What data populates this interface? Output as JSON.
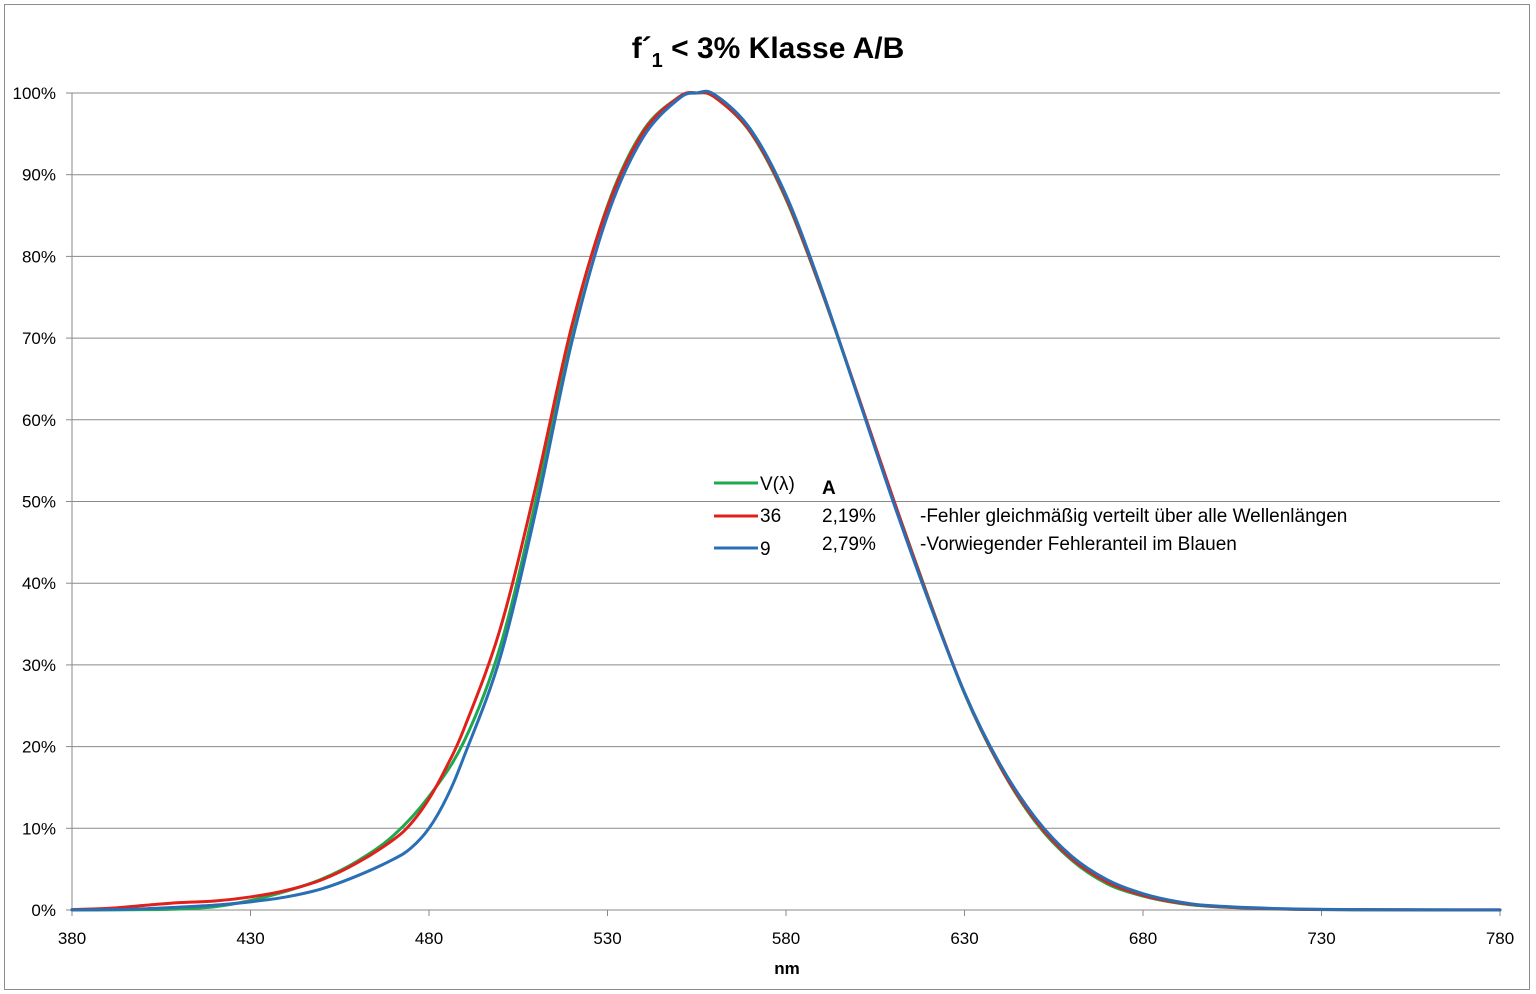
{
  "chart_data": {
    "type": "line",
    "title": "f´1 < 3% Klasse A/B",
    "title_parts": {
      "main": "f´",
      "subscript": "1",
      "rest": " < 3% Klasse A/B"
    },
    "xlabel": "nm",
    "ylabel": "",
    "xlim": [
      380,
      780
    ],
    "ylim": [
      0,
      100
    ],
    "x_ticks": [
      380,
      430,
      480,
      530,
      580,
      630,
      680,
      730,
      780
    ],
    "y_ticks": [
      "0%",
      "10%",
      "20%",
      "30%",
      "40%",
      "50%",
      "60%",
      "70%",
      "80%",
      "90%",
      "100%"
    ],
    "grid": true,
    "legend": {
      "placement": "center",
      "column_header": "A",
      "entries": [
        {
          "label": "V(λ)",
          "value": "",
          "note": ""
        },
        {
          "label": "36",
          "value": "2,19%",
          "note": "-Fehler gleichmäßig verteilt über alle  Wellenlängen"
        },
        {
          "label": "9",
          "value": "2,79%",
          "note": "-Vorwiegender Fehleranteil im Blauen"
        }
      ]
    },
    "series": [
      {
        "name": "V(λ)",
        "color": "#1fa84f",
        "x": [
          380,
          390,
          400,
          410,
          420,
          430,
          440,
          450,
          460,
          470,
          480,
          490,
          500,
          510,
          520,
          530,
          540,
          550,
          555,
          560,
          570,
          580,
          590,
          600,
          610,
          620,
          630,
          640,
          650,
          660,
          670,
          680,
          690,
          700,
          720,
          740,
          760,
          780
        ],
        "y": [
          0.0,
          0.01,
          0.04,
          0.12,
          0.4,
          1.16,
          2.3,
          3.8,
          6.0,
          9.1,
          13.9,
          20.8,
          32.3,
          50.3,
          71.0,
          86.2,
          95.4,
          99.5,
          100.0,
          99.5,
          95.2,
          87.0,
          75.7,
          63.1,
          50.3,
          38.1,
          26.5,
          17.5,
          10.7,
          6.1,
          3.2,
          1.7,
          0.82,
          0.41,
          0.1,
          0.02,
          0.01,
          0.0
        ]
      },
      {
        "name": "36",
        "color": "#e0201b",
        "x": [
          380,
          390,
          400,
          410,
          420,
          430,
          440,
          450,
          460,
          470,
          475,
          480,
          485,
          490,
          500,
          510,
          520,
          530,
          540,
          550,
          555,
          560,
          570,
          580,
          590,
          600,
          610,
          620,
          630,
          640,
          650,
          660,
          670,
          680,
          690,
          700,
          720,
          740,
          760,
          780
        ],
        "y": [
          0.05,
          0.2,
          0.55,
          0.9,
          1.1,
          1.6,
          2.4,
          3.7,
          5.8,
          8.6,
          10.6,
          13.6,
          17.6,
          22.4,
          34.5,
          52.0,
          71.5,
          86.0,
          95.2,
          99.5,
          100.0,
          99.5,
          95.3,
          87.2,
          75.8,
          63.2,
          50.4,
          38.0,
          26.6,
          17.6,
          10.9,
          6.3,
          3.4,
          1.8,
          0.9,
          0.45,
          0.12,
          0.04,
          0.02,
          0.01
        ]
      },
      {
        "name": "9",
        "color": "#2a6fb5",
        "x": [
          380,
          390,
          400,
          410,
          420,
          430,
          440,
          450,
          460,
          470,
          475,
          480,
          485,
          490,
          500,
          510,
          520,
          530,
          540,
          550,
          555,
          560,
          570,
          580,
          590,
          600,
          610,
          620,
          630,
          640,
          650,
          660,
          670,
          680,
          690,
          700,
          720,
          740,
          760,
          780
        ],
        "y": [
          0.02,
          0.05,
          0.15,
          0.35,
          0.6,
          1.0,
          1.6,
          2.6,
          4.2,
          6.2,
          7.6,
          10.0,
          13.8,
          19.0,
          31.0,
          49.0,
          69.5,
          85.0,
          94.6,
          99.3,
          100.0,
          99.8,
          95.6,
          87.5,
          76.0,
          63.0,
          50.0,
          37.8,
          26.6,
          17.8,
          11.2,
          6.6,
          3.7,
          2.0,
          1.0,
          0.5,
          0.15,
          0.05,
          0.02,
          0.01
        ]
      }
    ]
  }
}
